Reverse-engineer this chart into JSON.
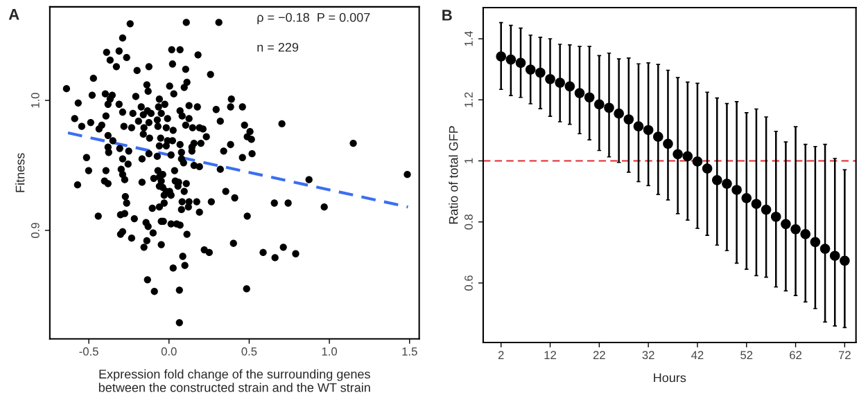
{
  "chart_data": [
    {
      "type": "scatter",
      "title": "A",
      "xlabel": "Expression fold change of the surrounding genes\nbetween the constructed strain and the WT strain",
      "ylabel": "Fitness",
      "annotations": [
        "ρ = −0.18  P = 0.007",
        "n = 229"
      ],
      "xlim": [
        -0.743,
        1.56
      ],
      "ylim": [
        0.8165,
        1.072
      ],
      "xticks": [
        {
          "value": -0.5,
          "label": "-0.5"
        },
        {
          "value": 0,
          "label": "0.0"
        },
        0.5,
        {
          "value": 1,
          "label": "1.0"
        },
        1.5
      ],
      "yticks": [
        0.9,
        {
          "value": 1,
          "label": "1.0"
        }
      ],
      "grid": false,
      "marker": "circle",
      "series": [
        {
          "color": "#000000",
          "x": [
            -0.242,
            0.108,
            0.311,
            -0.289,
            -0.389,
            -0.311,
            -0.264,
            -0.367,
            -0.328,
            0.017,
            0.069,
            0.181,
            0.022,
            -0.125,
            -0.199,
            0.104,
            0.259,
            -0.471,
            0.112,
            0.095,
            0.004,
            -0.138,
            -0.13,
            -0.639,
            -0.479,
            -0.397,
            -0.354,
            0.03,
            -0.207,
            -0.06,
            -0.367,
            -0.566,
            -0.38,
            -0.311,
            -0.026,
            -0.065,
            -0.173,
            -0.289,
            -0.225,
            -0.134,
            -0.16,
            -0.112,
            -0.048,
            0.069,
            0.125,
            0.177,
            0.082,
            0.294,
            0.389,
            0.384,
            0.458,
            -0.588,
            -0.488,
            -0.393,
            -0.19,
            -0.125,
            -0.073,
            -0.009,
            0.125,
            0.32,
            0.471,
            -0.544,
            -0.419,
            -0.436,
            -0.281,
            -0.233,
            -0.156,
            -0.069,
            -0.017,
            0.026,
            0.104,
            0.147,
            0.19,
            0.212,
            -0.16,
            -0.121,
            -0.38,
            0.233,
            -0.35,
            -0.052,
            -0.009,
            0.022,
            0.069,
            0.156,
            0.199,
            0.143,
            -0.06,
            -0.017,
            0.384,
            0.488,
            -0.38,
            -0.376,
            -0.307,
            -0.251,
            -0.125,
            -0.073,
            0.013,
            0.078,
            0.143,
            0.341,
            -0.514,
            -0.168,
            0.078,
            0.091,
            0.458,
            -0.289,
            -0.255,
            0.156,
            0.19,
            0.32,
            -0.501,
            -0.393,
            -0.298,
            -0.069,
            0.035,
            -0.57,
            -0.402,
            -0.38,
            -0.289,
            -0.276,
            -0.168,
            -0.095,
            -0.06,
            -0.039,
            -0.048,
            -0.06,
            -0.039,
            -0.017,
            0.004,
            -0.03,
            0.013,
            0.039,
            0.06,
            0.056,
            0.108,
            0.095,
            0.082,
            0.125,
            0.173,
            0.264,
            0.121,
            0.078,
            0.19,
            0.354,
            0.41,
            -0.272,
            -0.264,
            -0.441,
            -0.302,
            -0.276,
            -0.216,
            -0.104,
            -0.06,
            -0.03,
            -0.048,
            -0.035,
            0.013,
            0.048,
            0.069,
            -0.143,
            -0.13,
            0.488,
            -0.302,
            -0.289,
            -0.233,
            -0.099,
            0.112,
            -0.138,
            -0.156,
            -0.048,
            0.22,
            0.251,
            0.402,
            0.086,
            0.026,
            0.099,
            -0.134,
            -0.091,
            0.065,
            0.484,
            0.065,
            0.505,
            0.514,
            0.518,
            0.704,
            1.149,
            1.486,
            0.873,
            0.657,
            0.743,
            0.968,
            0.587,
            0.661,
            0.713,
            0.79
          ],
          "values": [
            1.059,
            1.06,
            1.06,
            1.048,
            1.037,
            1.038,
            1.033,
            1.031,
            1.026,
            1.039,
            1.039,
            1.035,
            1.028,
            1.026,
            1.023,
            1.024,
            1.02,
            1.017,
            1.014,
            1.01,
            1.011,
            1.012,
            1.007,
            1.009,
            1.004,
            1.005,
            1.004,
            1.005,
            1.003,
            1.001,
            1.001,
            0.998,
            0.997,
            0.997,
            0.997,
            0.995,
            0.995,
            0.991,
            0.99,
            0.992,
            0.989,
            0.99,
            0.99,
            0.992,
            0.996,
            0.995,
            0.988,
            0.993,
            1.001,
            0.995,
            0.995,
            0.986,
            0.983,
            0.988,
            0.984,
            0.983,
            0.985,
            0.986,
            0.986,
            0.984,
            0.981,
            0.98,
            0.981,
            0.978,
            0.98,
            0.979,
            0.979,
            0.98,
            0.979,
            0.977,
            0.981,
            0.979,
            0.979,
            0.978,
            0.974,
            0.971,
            0.973,
            0.972,
            0.969,
            0.971,
            0.969,
            0.969,
            0.966,
            0.967,
            0.967,
            0.964,
            0.965,
            0.965,
            0.966,
            0.972,
            0.964,
            0.96,
            0.963,
            0.961,
            0.959,
            0.957,
            0.958,
            0.96,
            0.961,
            0.961,
            0.956,
            0.955,
            0.955,
            0.952,
            0.956,
            0.955,
            0.951,
            0.95,
            0.949,
            0.947,
            0.946,
            0.946,
            0.947,
            0.946,
            0.946,
            0.935,
            0.938,
            0.936,
            0.943,
            0.939,
            0.937,
            0.94,
            0.941,
            0.943,
            0.938,
            0.934,
            0.933,
            0.93,
            0.93,
            0.927,
            0.927,
            0.938,
            0.937,
            0.934,
            0.936,
            0.93,
            0.922,
            0.922,
            0.922,
            0.922,
            0.918,
            0.916,
            0.914,
            0.93,
            0.925,
            0.926,
            0.921,
            0.911,
            0.912,
            0.913,
            0.909,
            0.917,
            0.918,
            0.921,
            0.907,
            0.907,
            0.905,
            0.905,
            0.904,
            0.906,
            0.903,
            0.911,
            0.897,
            0.899,
            0.894,
            0.898,
            0.897,
            0.892,
            0.887,
            0.889,
            0.885,
            0.883,
            0.89,
            0.88,
            0.871,
            0.873,
            0.862,
            0.853,
            0.854,
            0.855,
            0.829,
            0.976,
            0.97,
            0.959,
            0.982,
            0.967,
            0.943,
            0.939,
            0.921,
            0.921,
            0.918,
            0.883,
            0.879,
            0.887,
            0.882
          ]
        },
        {
          "type": "line",
          "color": "#3b6ff0",
          "line_style": "dashed",
          "marker": "none",
          "x": [
            -0.63,
            1.49
          ],
          "values": [
            0.975,
            0.918
          ]
        }
      ]
    },
    {
      "type": "scatter",
      "title": "B",
      "xlabel": "Hours",
      "ylabel": "Ratio of total GFP",
      "xlim": [
        -1.64,
        74.3
      ],
      "ylim": [
        0.405,
        1.502
      ],
      "xticks": [
        2,
        12,
        22,
        32,
        42,
        52,
        62,
        72
      ],
      "yticks": [
        0.6,
        0.8,
        1,
        1.2,
        1.4
      ],
      "grid": false,
      "marker": "circle",
      "ref_lines": [
        {
          "axis": "y",
          "value": 1,
          "color": "#e0282e",
          "line_style": "dashed"
        }
      ],
      "series": [
        {
          "color": "#000000",
          "x": [
            2,
            4,
            6,
            8,
            10,
            12,
            14,
            16,
            18,
            20,
            22,
            24,
            26,
            28,
            30,
            32,
            34,
            36,
            38,
            40,
            42,
            44,
            46,
            48,
            50,
            52,
            54,
            56,
            58,
            60,
            62,
            64,
            66,
            68,
            70,
            72
          ],
          "values": [
            1.342,
            1.332,
            1.321,
            1.299,
            1.289,
            1.268,
            1.256,
            1.244,
            1.222,
            1.208,
            1.185,
            1.174,
            1.155,
            1.136,
            1.113,
            1.101,
            1.079,
            1.056,
            1.022,
            1.015,
            0.998,
            0.975,
            0.937,
            0.925,
            0.905,
            0.878,
            0.859,
            0.84,
            0.817,
            0.793,
            0.776,
            0.76,
            0.734,
            0.712,
            0.689,
            0.673
          ],
          "errors": [
            [
              1.234,
              1.453
            ],
            [
              1.214,
              1.444
            ],
            [
              1.208,
              1.435
            ],
            [
              1.187,
              1.412
            ],
            [
              1.171,
              1.405
            ],
            [
              1.146,
              1.4
            ],
            [
              1.128,
              1.382
            ],
            [
              1.12,
              1.38
            ],
            [
              1.089,
              1.375
            ],
            [
              1.069,
              1.375
            ],
            [
              1.034,
              1.345
            ],
            [
              1.013,
              1.353
            ],
            [
              0.995,
              1.334
            ],
            [
              0.963,
              1.337
            ],
            [
              0.932,
              1.318
            ],
            [
              0.919,
              1.321
            ],
            [
              0.89,
              1.316
            ],
            [
              0.872,
              1.297
            ],
            [
              0.827,
              1.273
            ],
            [
              0.806,
              1.258
            ],
            [
              0.779,
              1.254
            ],
            [
              0.756,
              1.225
            ],
            [
              0.724,
              1.206
            ],
            [
              0.706,
              1.188
            ],
            [
              0.665,
              1.194
            ],
            [
              0.645,
              1.158
            ],
            [
              0.624,
              1.17
            ],
            [
              0.619,
              1.144
            ],
            [
              0.587,
              1.097
            ],
            [
              0.574,
              1.062
            ],
            [
              0.559,
              1.112
            ],
            [
              0.538,
              1.054
            ],
            [
              0.516,
              1.047
            ],
            [
              0.472,
              1.054
            ],
            [
              0.459,
              1.008
            ],
            [
              0.454,
              0.971
            ]
          ]
        }
      ]
    }
  ]
}
